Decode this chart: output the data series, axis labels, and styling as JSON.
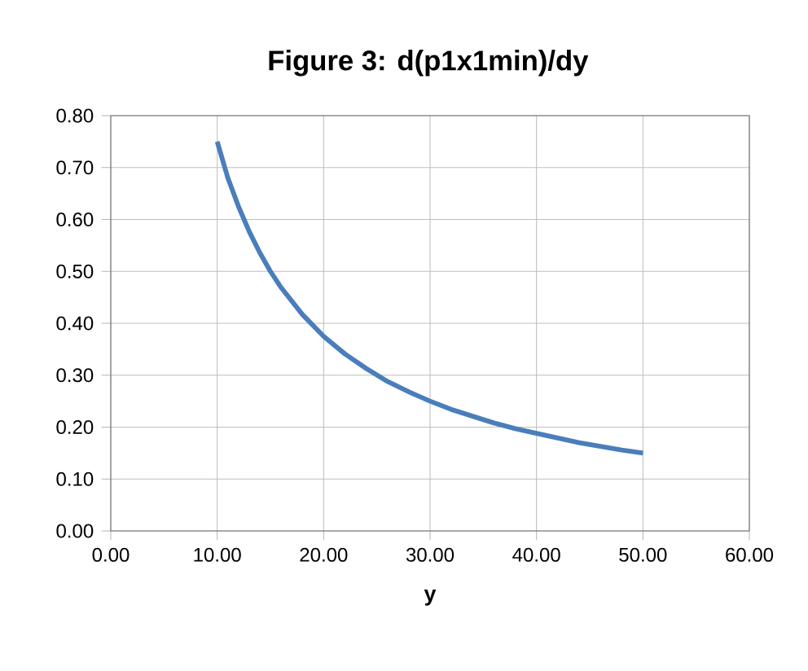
{
  "chart_data": {
    "type": "line",
    "title": "Figure 3: d(p1x1min)/dy",
    "xlabel": "y",
    "x": [
      10,
      11,
      12,
      13,
      14,
      15,
      16,
      18,
      20,
      22,
      24,
      26,
      28,
      30,
      32,
      34,
      36,
      38,
      40,
      42,
      44,
      46,
      48,
      50
    ],
    "series": [
      {
        "color": "#4a7ebb",
        "values": [
          0.75,
          0.68,
          0.625,
          0.577,
          0.536,
          0.5,
          0.469,
          0.417,
          0.375,
          0.341,
          0.313,
          0.288,
          0.268,
          0.25,
          0.234,
          0.221,
          0.208,
          0.197,
          0.188,
          0.179,
          0.17,
          0.163,
          0.156,
          0.15
        ]
      }
    ],
    "xlim": [
      0,
      60
    ],
    "ylim": [
      0,
      0.8
    ],
    "xticks": [
      {
        "value": 0,
        "label": "0.00"
      },
      {
        "value": 10,
        "label": "10.00"
      },
      {
        "value": 20,
        "label": "20.00"
      },
      {
        "value": 30,
        "label": "30.00"
      },
      {
        "value": 40,
        "label": "40.00"
      },
      {
        "value": 50,
        "label": "50.00"
      },
      {
        "value": 60,
        "label": "60.00"
      }
    ],
    "yticks": [
      {
        "value": 0,
        "label": "0.00"
      },
      {
        "value": 0.1,
        "label": "0.10"
      },
      {
        "value": 0.2,
        "label": "0.20"
      },
      {
        "value": 0.3,
        "label": "0.30"
      },
      {
        "value": 0.4,
        "label": "0.40"
      },
      {
        "value": 0.5,
        "label": "0.50"
      },
      {
        "value": 0.6,
        "label": "0.60"
      },
      {
        "value": 0.7,
        "label": "0.70"
      },
      {
        "value": 0.8,
        "label": "0.80"
      }
    ],
    "grid": true,
    "marker": "none",
    "line_style": "solid"
  }
}
